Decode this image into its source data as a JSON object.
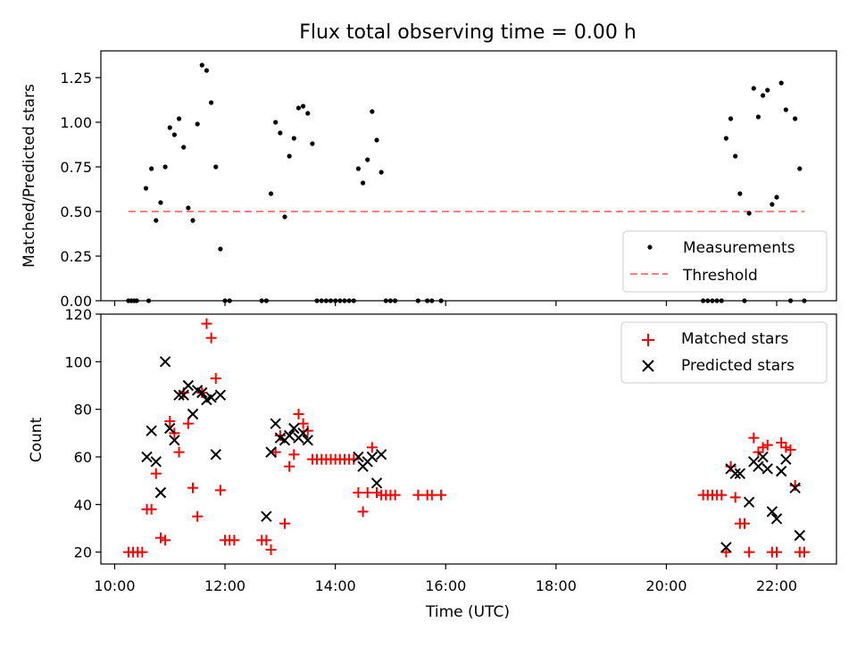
{
  "chart_data": [
    {
      "type": "scatter",
      "title": "Flux total observing time = 0.00 h",
      "xlabel": "",
      "ylabel": "Matched/Predicted stars",
      "xlim": [
        "09:45",
        "23:05"
      ],
      "ylim": [
        0,
        1.4
      ],
      "y_ticks": [
        "0.00",
        "0.25",
        "0.50",
        "0.75",
        "1.00",
        "1.25"
      ],
      "grid": false,
      "legend_position": "bottom-right",
      "legend": [
        "Measurements",
        "Threshold"
      ],
      "colors": {
        "measurements": "#000000",
        "threshold": "#ff8080"
      },
      "threshold": {
        "value": 0.5,
        "x_start": "10:15",
        "x_end": "22:30"
      },
      "series": [
        {
          "name": "Measurements",
          "points": [
            {
              "x": "10:15",
              "y": 0
            },
            {
              "x": "10:18",
              "y": 0
            },
            {
              "x": "10:21",
              "y": 0
            },
            {
              "x": "10:24",
              "y": 0
            },
            {
              "x": "10:34",
              "y": 0.63
            },
            {
              "x": "10:37",
              "y": 0
            },
            {
              "x": "10:40",
              "y": 0.74
            },
            {
              "x": "10:45",
              "y": 0.45
            },
            {
              "x": "10:50",
              "y": 0.55
            },
            {
              "x": "10:55",
              "y": 0.75
            },
            {
              "x": "11:00",
              "y": 0.97
            },
            {
              "x": "11:05",
              "y": 0.93
            },
            {
              "x": "11:10",
              "y": 1.02
            },
            {
              "x": "11:15",
              "y": 0.86
            },
            {
              "x": "11:20",
              "y": 0.52
            },
            {
              "x": "11:25",
              "y": 0.45
            },
            {
              "x": "11:30",
              "y": 0.99
            },
            {
              "x": "11:35",
              "y": 1.32
            },
            {
              "x": "11:40",
              "y": 1.29
            },
            {
              "x": "11:45",
              "y": 1.11
            },
            {
              "x": "11:50",
              "y": 0.75
            },
            {
              "x": "11:55",
              "y": 0.29
            },
            {
              "x": "12:00",
              "y": 0
            },
            {
              "x": "12:05",
              "y": 0
            },
            {
              "x": "12:40",
              "y": 0
            },
            {
              "x": "12:45",
              "y": 0
            },
            {
              "x": "12:50",
              "y": 0.6
            },
            {
              "x": "12:55",
              "y": 1.0
            },
            {
              "x": "13:00",
              "y": 0.94
            },
            {
              "x": "13:05",
              "y": 0.47
            },
            {
              "x": "13:10",
              "y": 0.81
            },
            {
              "x": "13:15",
              "y": 0.91
            },
            {
              "x": "13:20",
              "y": 1.08
            },
            {
              "x": "13:25",
              "y": 1.09
            },
            {
              "x": "13:30",
              "y": 1.05
            },
            {
              "x": "13:35",
              "y": 0.88
            },
            {
              "x": "13:40",
              "y": 0
            },
            {
              "x": "13:45",
              "y": 0
            },
            {
              "x": "13:50",
              "y": 0
            },
            {
              "x": "13:55",
              "y": 0
            },
            {
              "x": "14:00",
              "y": 0
            },
            {
              "x": "14:05",
              "y": 0
            },
            {
              "x": "14:10",
              "y": 0
            },
            {
              "x": "14:15",
              "y": 0
            },
            {
              "x": "14:20",
              "y": 0
            },
            {
              "x": "14:25",
              "y": 0.74
            },
            {
              "x": "14:30",
              "y": 0.66
            },
            {
              "x": "14:35",
              "y": 0.79
            },
            {
              "x": "14:40",
              "y": 1.06
            },
            {
              "x": "14:45",
              "y": 0.9
            },
            {
              "x": "14:50",
              "y": 0.72
            },
            {
              "x": "14:55",
              "y": 0
            },
            {
              "x": "15:00",
              "y": 0
            },
            {
              "x": "15:05",
              "y": 0
            },
            {
              "x": "15:30",
              "y": 0
            },
            {
              "x": "15:40",
              "y": 0
            },
            {
              "x": "15:45",
              "y": 0
            },
            {
              "x": "15:55",
              "y": 0
            },
            {
              "x": "20:40",
              "y": 0
            },
            {
              "x": "20:45",
              "y": 0
            },
            {
              "x": "20:50",
              "y": 0
            },
            {
              "x": "20:55",
              "y": 0
            },
            {
              "x": "21:00",
              "y": 0
            },
            {
              "x": "21:05",
              "y": 0.91
            },
            {
              "x": "21:10",
              "y": 1.02
            },
            {
              "x": "21:15",
              "y": 0.81
            },
            {
              "x": "21:20",
              "y": 0.6
            },
            {
              "x": "21:25",
              "y": 0
            },
            {
              "x": "21:30",
              "y": 0.49
            },
            {
              "x": "21:35",
              "y": 1.19
            },
            {
              "x": "21:40",
              "y": 1.03
            },
            {
              "x": "21:45",
              "y": 1.15
            },
            {
              "x": "21:50",
              "y": 1.18
            },
            {
              "x": "21:55",
              "y": 0.54
            },
            {
              "x": "22:00",
              "y": 0.58
            },
            {
              "x": "22:05",
              "y": 1.22
            },
            {
              "x": "22:10",
              "y": 1.07
            },
            {
              "x": "22:15",
              "y": 0
            },
            {
              "x": "22:20",
              "y": 1.02
            },
            {
              "x": "22:25",
              "y": 0.74
            },
            {
              "x": "22:30",
              "y": 0
            }
          ]
        }
      ]
    },
    {
      "type": "scatter",
      "title": "",
      "xlabel": "Time (UTC)",
      "ylabel": "Count",
      "xlim": [
        "09:45",
        "23:05"
      ],
      "ylim": [
        15,
        120
      ],
      "y_ticks": [
        "20",
        "40",
        "60",
        "80",
        "100",
        "120"
      ],
      "x_ticks": [
        "10:00",
        "12:00",
        "14:00",
        "16:00",
        "18:00",
        "20:00",
        "22:00"
      ],
      "grid": false,
      "legend_position": "top-right",
      "legend": [
        "Matched stars",
        "Predicted stars"
      ],
      "colors": {
        "matched": "#ff0000",
        "predicted": "#000000"
      },
      "series": [
        {
          "name": "Matched stars",
          "marker": "+",
          "points": [
            {
              "x": "10:15",
              "y": 20
            },
            {
              "x": "10:20",
              "y": 20
            },
            {
              "x": "10:25",
              "y": 20
            },
            {
              "x": "10:30",
              "y": 20
            },
            {
              "x": "10:35",
              "y": 38
            },
            {
              "x": "10:40",
              "y": 38
            },
            {
              "x": "10:45",
              "y": 53
            },
            {
              "x": "10:50",
              "y": 26
            },
            {
              "x": "10:55",
              "y": 25
            },
            {
              "x": "11:00",
              "y": 75
            },
            {
              "x": "11:05",
              "y": 70
            },
            {
              "x": "11:10",
              "y": 62
            },
            {
              "x": "11:15",
              "y": 87
            },
            {
              "x": "11:20",
              "y": 74
            },
            {
              "x": "11:25",
              "y": 47
            },
            {
              "x": "11:30",
              "y": 35
            },
            {
              "x": "11:35",
              "y": 87
            },
            {
              "x": "11:40",
              "y": 116
            },
            {
              "x": "11:45",
              "y": 110
            },
            {
              "x": "11:50",
              "y": 93
            },
            {
              "x": "11:55",
              "y": 46
            },
            {
              "x": "12:00",
              "y": 25
            },
            {
              "x": "12:05",
              "y": 25
            },
            {
              "x": "12:10",
              "y": 25
            },
            {
              "x": "12:40",
              "y": 25
            },
            {
              "x": "12:45",
              "y": 25
            },
            {
              "x": "12:50",
              "y": 21
            },
            {
              "x": "12:55",
              "y": 62
            },
            {
              "x": "13:00",
              "y": 69
            },
            {
              "x": "13:05",
              "y": 32
            },
            {
              "x": "13:10",
              "y": 56
            },
            {
              "x": "13:15",
              "y": 61
            },
            {
              "x": "13:20",
              "y": 78
            },
            {
              "x": "13:25",
              "y": 74
            },
            {
              "x": "13:30",
              "y": 71
            },
            {
              "x": "13:35",
              "y": 59
            },
            {
              "x": "13:40",
              "y": 59
            },
            {
              "x": "13:45",
              "y": 59
            },
            {
              "x": "13:50",
              "y": 59
            },
            {
              "x": "13:55",
              "y": 59
            },
            {
              "x": "14:00",
              "y": 59
            },
            {
              "x": "14:05",
              "y": 59
            },
            {
              "x": "14:10",
              "y": 59
            },
            {
              "x": "14:15",
              "y": 59
            },
            {
              "x": "14:20",
              "y": 59
            },
            {
              "x": "14:25",
              "y": 45
            },
            {
              "x": "14:30",
              "y": 37
            },
            {
              "x": "14:35",
              "y": 45
            },
            {
              "x": "14:40",
              "y": 64
            },
            {
              "x": "14:45",
              "y": 45
            },
            {
              "x": "14:50",
              "y": 44
            },
            {
              "x": "14:55",
              "y": 44
            },
            {
              "x": "15:00",
              "y": 44
            },
            {
              "x": "15:05",
              "y": 44
            },
            {
              "x": "15:30",
              "y": 44
            },
            {
              "x": "15:40",
              "y": 44
            },
            {
              "x": "15:45",
              "y": 44
            },
            {
              "x": "15:55",
              "y": 44
            },
            {
              "x": "20:40",
              "y": 44
            },
            {
              "x": "20:45",
              "y": 44
            },
            {
              "x": "20:50",
              "y": 44
            },
            {
              "x": "20:55",
              "y": 44
            },
            {
              "x": "21:00",
              "y": 44
            },
            {
              "x": "21:05",
              "y": 20
            },
            {
              "x": "21:10",
              "y": 56
            },
            {
              "x": "21:15",
              "y": 43
            },
            {
              "x": "21:20",
              "y": 32
            },
            {
              "x": "21:25",
              "y": 32
            },
            {
              "x": "21:30",
              "y": 20
            },
            {
              "x": "21:35",
              "y": 68
            },
            {
              "x": "21:40",
              "y": 62
            },
            {
              "x": "21:45",
              "y": 64
            },
            {
              "x": "21:50",
              "y": 65
            },
            {
              "x": "21:55",
              "y": 20
            },
            {
              "x": "22:00",
              "y": 20
            },
            {
              "x": "22:05",
              "y": 66
            },
            {
              "x": "22:10",
              "y": 64
            },
            {
              "x": "22:15",
              "y": 63
            },
            {
              "x": "22:20",
              "y": 48
            },
            {
              "x": "22:25",
              "y": 20
            },
            {
              "x": "22:30",
              "y": 20
            }
          ]
        },
        {
          "name": "Predicted stars",
          "marker": "x",
          "points": [
            {
              "x": "10:35",
              "y": 60
            },
            {
              "x": "10:40",
              "y": 71
            },
            {
              "x": "10:45",
              "y": 58
            },
            {
              "x": "10:50",
              "y": 45
            },
            {
              "x": "10:55",
              "y": 100
            },
            {
              "x": "11:00",
              "y": 72
            },
            {
              "x": "11:05",
              "y": 67
            },
            {
              "x": "11:10",
              "y": 86
            },
            {
              "x": "11:15",
              "y": 86
            },
            {
              "x": "11:20",
              "y": 90
            },
            {
              "x": "11:25",
              "y": 78
            },
            {
              "x": "11:30",
              "y": 88
            },
            {
              "x": "11:35",
              "y": 87
            },
            {
              "x": "11:40",
              "y": 84
            },
            {
              "x": "11:45",
              "y": 85
            },
            {
              "x": "11:50",
              "y": 61
            },
            {
              "x": "11:55",
              "y": 86
            },
            {
              "x": "12:45",
              "y": 35
            },
            {
              "x": "12:50",
              "y": 62
            },
            {
              "x": "12:55",
              "y": 74
            },
            {
              "x": "13:00",
              "y": 68
            },
            {
              "x": "13:05",
              "y": 67
            },
            {
              "x": "13:10",
              "y": 69
            },
            {
              "x": "13:15",
              "y": 72
            },
            {
              "x": "13:20",
              "y": 68
            },
            {
              "x": "13:25",
              "y": 70
            },
            {
              "x": "13:30",
              "y": 67
            },
            {
              "x": "14:25",
              "y": 60
            },
            {
              "x": "14:30",
              "y": 56
            },
            {
              "x": "14:35",
              "y": 58
            },
            {
              "x": "14:40",
              "y": 60
            },
            {
              "x": "14:45",
              "y": 49
            },
            {
              "x": "14:50",
              "y": 61
            },
            {
              "x": "21:05",
              "y": 22
            },
            {
              "x": "21:10",
              "y": 55
            },
            {
              "x": "21:15",
              "y": 53
            },
            {
              "x": "21:20",
              "y": 53
            },
            {
              "x": "21:30",
              "y": 41
            },
            {
              "x": "21:35",
              "y": 58
            },
            {
              "x": "21:40",
              "y": 56
            },
            {
              "x": "21:45",
              "y": 60
            },
            {
              "x": "21:50",
              "y": 55
            },
            {
              "x": "21:55",
              "y": 37
            },
            {
              "x": "22:00",
              "y": 34
            },
            {
              "x": "22:05",
              "y": 54
            },
            {
              "x": "22:10",
              "y": 59
            },
            {
              "x": "22:20",
              "y": 47
            },
            {
              "x": "22:25",
              "y": 27
            }
          ]
        }
      ]
    }
  ]
}
